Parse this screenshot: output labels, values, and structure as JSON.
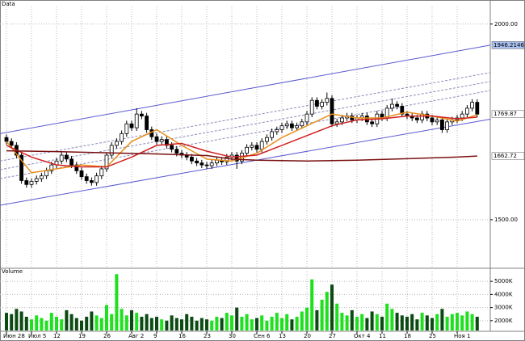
{
  "chart_data": [
    {
      "type": "candlestick",
      "title": "Data",
      "categories": [
        "Июн 28",
        null,
        null,
        null,
        null,
        "Июл 5",
        null,
        null,
        null,
        null,
        "12",
        null,
        null,
        null,
        null,
        "19",
        null,
        null,
        null,
        null,
        "26",
        null,
        null,
        null,
        null,
        "Авг 2",
        null,
        null,
        null,
        null,
        "9",
        null,
        null,
        null,
        null,
        "16",
        null,
        null,
        null,
        null,
        "23",
        null,
        null,
        null,
        null,
        "30",
        null,
        null,
        null,
        null,
        "Сен 6",
        null,
        null,
        null,
        null,
        "13",
        null,
        null,
        null,
        null,
        "20",
        null,
        null,
        null,
        null,
        "27",
        null,
        null,
        null,
        null,
        "Окт 4",
        null,
        null,
        null,
        null,
        "11",
        null,
        null,
        null,
        null,
        "18",
        null,
        null,
        null,
        null,
        "25",
        null,
        null,
        null,
        null,
        "Ноя 1",
        null,
        null,
        null,
        null
      ],
      "open": [
        1710,
        1700,
        1690,
        1665,
        1600,
        1590,
        1598,
        1605,
        1612,
        1625,
        1640,
        1650,
        1665,
        1655,
        1640,
        1625,
        1610,
        1600,
        1595,
        1612,
        1630,
        1665,
        1690,
        1700,
        1720,
        1745,
        1735,
        1770,
        1765,
        1730,
        1712,
        1700,
        1705,
        1690,
        1680,
        1670,
        1665,
        1660,
        1650,
        1645,
        1640,
        1638,
        1645,
        1652,
        1648,
        1660,
        1665,
        1650,
        1670,
        1685,
        1690,
        1680,
        1700,
        1710,
        1725,
        1730,
        1740,
        1745,
        1735,
        1740,
        1750,
        1770,
        1805,
        1790,
        1800,
        1810,
        1745,
        1750,
        1760,
        1765,
        1755,
        1760,
        1765,
        1750,
        1745,
        1770,
        1760,
        1785,
        1795,
        1790,
        1770,
        1765,
        1760,
        1755,
        1770,
        1760,
        1750,
        1755,
        1730,
        1750,
        1755,
        1760,
        1770,
        1785,
        1800
      ],
      "high": [
        1718,
        1708,
        1698,
        1673,
        1608,
        1606,
        1613,
        1620,
        1633,
        1648,
        1658,
        1673,
        1673,
        1663,
        1648,
        1633,
        1618,
        1608,
        1620,
        1638,
        1673,
        1698,
        1708,
        1728,
        1753,
        1753,
        1785,
        1778,
        1773,
        1738,
        1720,
        1713,
        1713,
        1698,
        1688,
        1678,
        1673,
        1668,
        1658,
        1653,
        1648,
        1653,
        1660,
        1660,
        1668,
        1673,
        1673,
        1678,
        1693,
        1698,
        1698,
        1708,
        1718,
        1733,
        1738,
        1748,
        1753,
        1753,
        1748,
        1758,
        1778,
        1813,
        1813,
        1808,
        1825,
        1818,
        1758,
        1768,
        1773,
        1773,
        1768,
        1773,
        1773,
        1758,
        1778,
        1778,
        1793,
        1810,
        1803,
        1798,
        1778,
        1773,
        1768,
        1778,
        1778,
        1768,
        1763,
        1763,
        1758,
        1763,
        1768,
        1778,
        1793,
        1808,
        1808
      ],
      "low": [
        1692,
        1682,
        1657,
        1592,
        1582,
        1582,
        1590,
        1597,
        1604,
        1617,
        1632,
        1642,
        1647,
        1632,
        1617,
        1602,
        1592,
        1587,
        1587,
        1604,
        1622,
        1657,
        1682,
        1692,
        1712,
        1727,
        1727,
        1757,
        1722,
        1704,
        1692,
        1692,
        1682,
        1672,
        1662,
        1657,
        1652,
        1642,
        1637,
        1632,
        1630,
        1630,
        1637,
        1640,
        1640,
        1652,
        1630,
        1642,
        1662,
        1677,
        1672,
        1672,
        1692,
        1702,
        1717,
        1722,
        1732,
        1727,
        1727,
        1732,
        1742,
        1762,
        1782,
        1782,
        1792,
        1737,
        1737,
        1742,
        1752,
        1747,
        1747,
        1752,
        1742,
        1737,
        1737,
        1752,
        1752,
        1777,
        1782,
        1762,
        1757,
        1752,
        1747,
        1747,
        1752,
        1742,
        1742,
        1722,
        1722,
        1742,
        1747,
        1752,
        1762,
        1777,
        1762
      ],
      "close": [
        1700,
        1690,
        1665,
        1600,
        1590,
        1598,
        1605,
        1612,
        1625,
        1640,
        1650,
        1665,
        1655,
        1640,
        1625,
        1610,
        1600,
        1595,
        1612,
        1630,
        1665,
        1690,
        1700,
        1720,
        1745,
        1735,
        1770,
        1765,
        1730,
        1712,
        1700,
        1705,
        1690,
        1680,
        1670,
        1665,
        1660,
        1650,
        1645,
        1640,
        1638,
        1645,
        1652,
        1648,
        1660,
        1665,
        1650,
        1670,
        1685,
        1690,
        1680,
        1700,
        1710,
        1725,
        1730,
        1740,
        1745,
        1735,
        1740,
        1750,
        1770,
        1805,
        1790,
        1800,
        1810,
        1745,
        1750,
        1760,
        1765,
        1755,
        1760,
        1765,
        1750,
        1745,
        1770,
        1760,
        1785,
        1795,
        1790,
        1770,
        1765,
        1760,
        1755,
        1770,
        1760,
        1750,
        1755,
        1730,
        1750,
        1755,
        1760,
        1770,
        1785,
        1800,
        1769.87
      ],
      "up_color": "#ffffff",
      "down_color": "#000000",
      "series": [
        {
          "color": "#e8901c",
          "x": [
            0,
            5,
            10,
            15,
            20,
            25,
            30,
            35,
            40,
            45,
            50,
            55,
            60,
            65,
            70,
            75,
            80,
            85,
            90,
            94
          ],
          "values": [
            1700,
            1620,
            1630,
            1640,
            1635,
            1700,
            1730,
            1690,
            1655,
            1650,
            1670,
            1710,
            1740,
            1770,
            1760,
            1760,
            1775,
            1765,
            1752,
            1768
          ]
        },
        {
          "color": "#d02020",
          "x": [
            0,
            5,
            10,
            15,
            20,
            25,
            30,
            35,
            40,
            45,
            50,
            55,
            60,
            65,
            70,
            75,
            80,
            85,
            90,
            94
          ],
          "values": [
            1690,
            1660,
            1640,
            1635,
            1635,
            1660,
            1690,
            1695,
            1675,
            1660,
            1665,
            1690,
            1715,
            1740,
            1755,
            1758,
            1765,
            1765,
            1758,
            1762
          ]
        },
        {
          "color": "#7a1010",
          "x": [
            0,
            10,
            20,
            30,
            40,
            45,
            50,
            60,
            70,
            80,
            90,
            94
          ],
          "values": [
            1676,
            1674,
            1671,
            1668,
            1664,
            1655,
            1652,
            1650,
            1652,
            1656,
            1660,
            1662.72
          ]
        }
      ],
      "channels": [
        {
          "color": "#5a5ad0",
          "dashed": false,
          "values": [
            1720,
            1946.2146
          ]
        },
        {
          "color": "#5a5ad0",
          "dashed": false,
          "values": [
            1537,
            1757
          ]
        },
        {
          "color": "#8a8ab8",
          "dashed": true,
          "values": [
            1650,
            1876
          ]
        },
        {
          "color": "#8a8ab8",
          "dashed": true,
          "values": [
            1628,
            1853
          ]
        },
        {
          "color": "#8a8ab8",
          "dashed": true,
          "values": [
            1605,
            1830
          ]
        }
      ],
      "ylim": [
        1380,
        2045
      ],
      "yticks": [
        {
          "value": 2000,
          "label": "2000.00"
        },
        {
          "value": 1500,
          "label": "1500.00"
        }
      ],
      "grid": true
    },
    {
      "type": "bar",
      "title": "Volume",
      "values": [
        2600,
        2500,
        2900,
        2700,
        2300,
        2100,
        2400,
        2200,
        2000,
        2600,
        2300,
        2100,
        2800,
        2500,
        2200,
        2000,
        2300,
        2700,
        2400,
        2200,
        3200,
        2500,
        5550,
        2900,
        2400,
        2800,
        2600,
        2300,
        2500,
        2200,
        2300,
        2100,
        2000,
        2400,
        2200,
        2100,
        2500,
        2300,
        2000,
        2200,
        2100,
        2000,
        2300,
        2200,
        2600,
        2400,
        3000,
        2300,
        2500,
        2100,
        2200,
        2400,
        2000,
        2300,
        2600,
        2200,
        2500,
        2100,
        2300,
        2700,
        3000,
        5150,
        2800,
        3600,
        4200,
        4750,
        3300,
        2600,
        2400,
        2800,
        2300,
        2500,
        2200,
        2700,
        2500,
        2300,
        3300,
        2900,
        2600,
        2400,
        2300,
        2500,
        2100,
        2600,
        2400,
        2200,
        2500,
        2900,
        2300,
        2500,
        2600,
        2400,
        2700,
        2500,
        2300
      ],
      "up_color": "#1fe01f",
      "down_color": "#0c4a14",
      "ylim": [
        1250,
        5750
      ],
      "yticks": [
        {
          "value": 5000,
          "label": "5000K"
        },
        {
          "value": 4000,
          "label": "4000K"
        },
        {
          "value": 3000,
          "label": "3000K"
        },
        {
          "value": 2000,
          "label": "2000K"
        }
      ],
      "grid": true
    }
  ]
}
